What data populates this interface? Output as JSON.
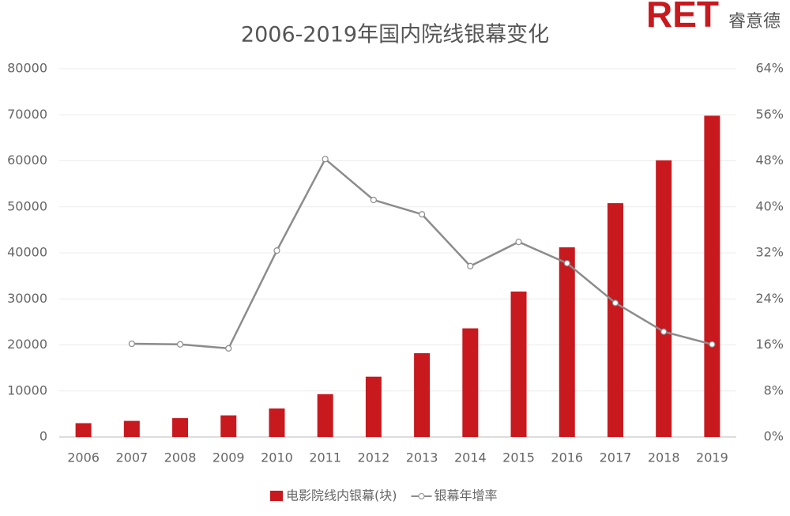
{
  "brand": {
    "mark": "RET",
    "name": "睿意德"
  },
  "chart_data": {
    "type": "bar-line",
    "title": "2006-2019年国内院线银幕变化",
    "categories": [
      "2006",
      "2007",
      "2008",
      "2009",
      "2010",
      "2011",
      "2012",
      "2013",
      "2014",
      "2015",
      "2016",
      "2017",
      "2018",
      "2019"
    ],
    "series": [
      {
        "name": "电影院线内银幕(块)",
        "type": "bar",
        "color": "#c8191e",
        "values": [
          3000,
          3500,
          4100,
          4700,
          6200,
          9300,
          13100,
          18200,
          23600,
          31600,
          41200,
          50800,
          60100,
          69800
        ]
      },
      {
        "name": "银幕年增率",
        "type": "line",
        "axis": "y2",
        "color": "#8c8c8c",
        "values": [
          null,
          16.2,
          16.1,
          15.4,
          32.4,
          48.3,
          41.2,
          38.7,
          29.7,
          33.9,
          30.2,
          23.3,
          18.3,
          16.1
        ]
      }
    ],
    "ylim": [
      0,
      80000
    ],
    "yticks": [
      0,
      10000,
      20000,
      30000,
      40000,
      50000,
      60000,
      70000,
      80000
    ],
    "y2lim": [
      0,
      64
    ],
    "y2ticks": [
      {
        "value": 0,
        "label": "0%"
      },
      {
        "value": 8,
        "label": "8%"
      },
      {
        "value": 16,
        "label": "16%"
      },
      {
        "value": 24,
        "label": "24%"
      },
      {
        "value": 32,
        "label": "32%"
      },
      {
        "value": 40,
        "label": "40%"
      },
      {
        "value": 48,
        "label": "48%"
      },
      {
        "value": 56,
        "label": "56%"
      },
      {
        "value": 64,
        "label": "64%"
      }
    ],
    "grid": true,
    "legend": "bottom"
  }
}
